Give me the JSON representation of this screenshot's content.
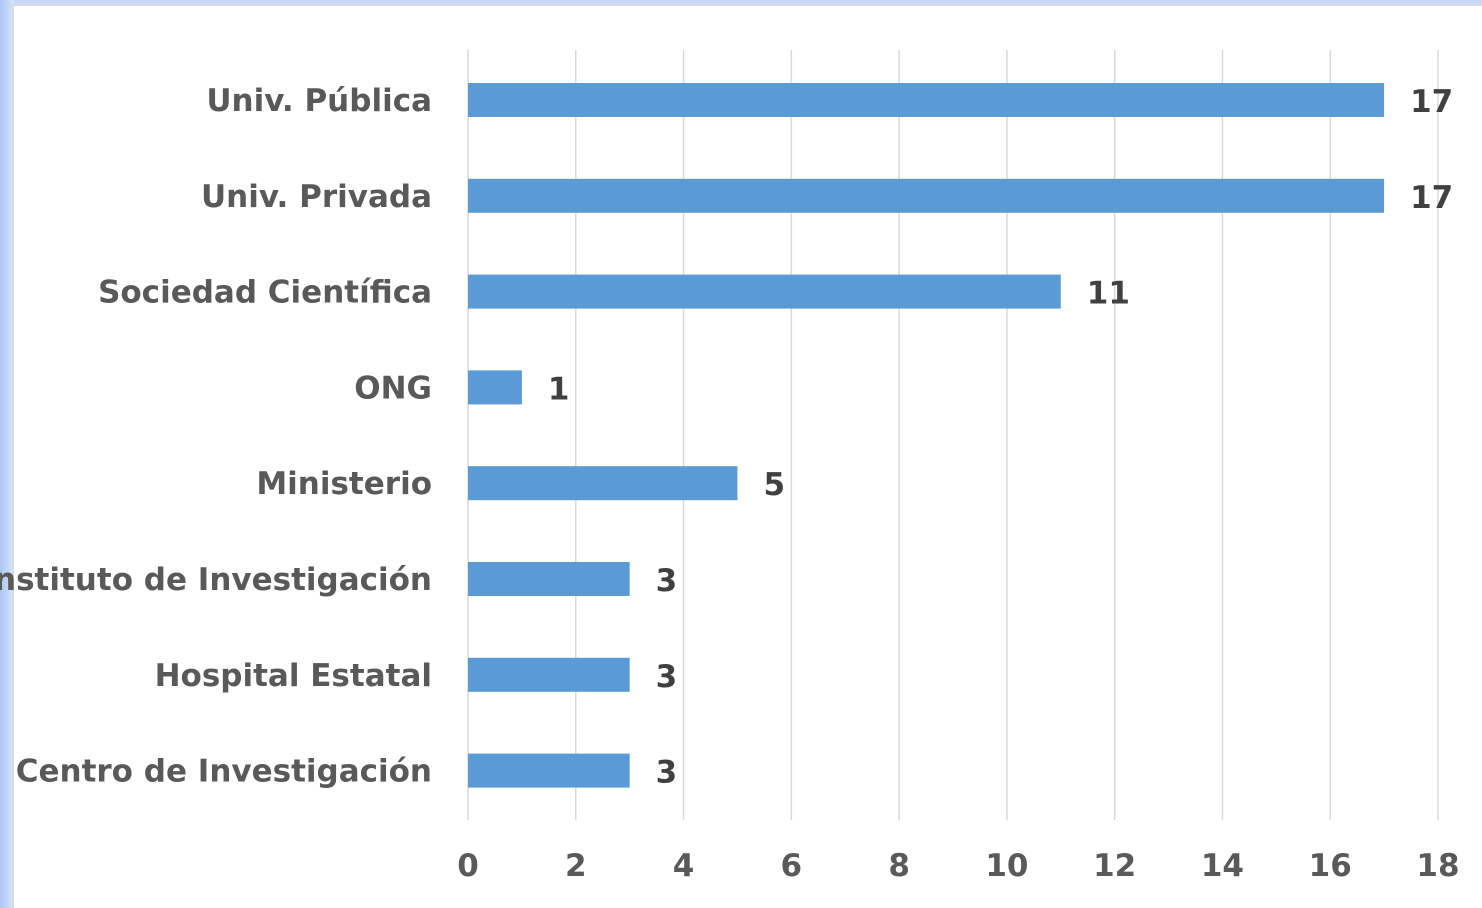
{
  "chart_data": {
    "type": "bar",
    "orientation": "horizontal",
    "title": "",
    "xlabel": "",
    "ylabel": "",
    "xlim": [
      0,
      18
    ],
    "ticks": [
      0,
      2,
      4,
      6,
      8,
      10,
      12,
      14,
      16,
      18
    ],
    "grid": true,
    "legend": "none",
    "bar_color": "#5b9bd5",
    "categories": [
      "Univ. Pública",
      "Univ. Privada",
      "Sociedad Científica",
      "ONG",
      "Ministerio",
      "Instituto de Investigación",
      "Hospital Estatal",
      "Centro de Investigación"
    ],
    "values": [
      17,
      17,
      11,
      1,
      5,
      3,
      3,
      3
    ]
  }
}
